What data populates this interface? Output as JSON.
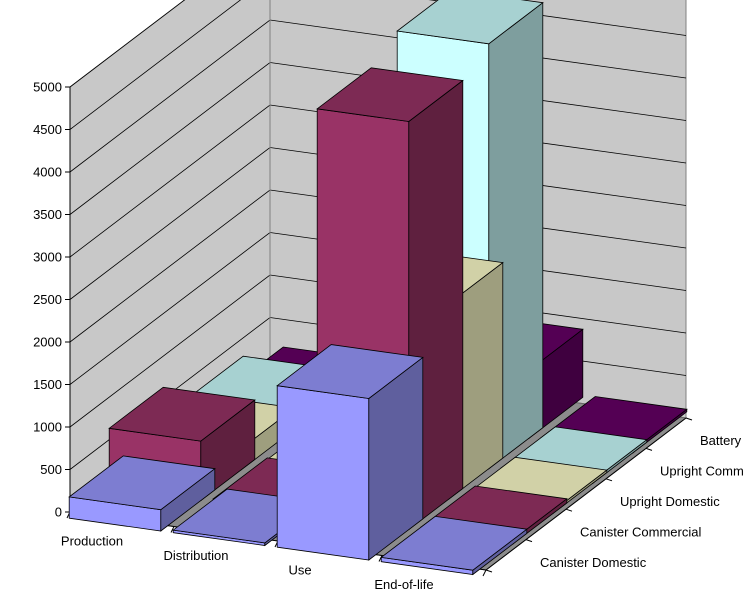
{
  "chart_data": {
    "type": "bar",
    "subtype": "3d-column",
    "title": "",
    "xlabel": "",
    "ylabel": "",
    "ylim": [
      0,
      5000
    ],
    "yticks": [
      "0",
      "500",
      "1000",
      "1500",
      "2000",
      "2500",
      "3000",
      "3500",
      "4000",
      "4500",
      "5000"
    ],
    "grid": true,
    "categories": [
      "Production",
      "Distribution",
      "Use",
      "End-of-life"
    ],
    "series": [
      {
        "name": "Canister Domestic",
        "color": "#9999FF",
        "values": [
          250,
          30,
          1900,
          50
        ]
      },
      {
        "name": "Canister Commercial",
        "color": "#993366",
        "values": [
          700,
          40,
          4800,
          50
        ]
      },
      {
        "name": "Upright Domestic",
        "color": "#FFFFCC",
        "values": [
          250,
          20,
          2300,
          30
        ]
      },
      {
        "name": "Upright Commercial",
        "color": "#CCFFFF",
        "values": [
          350,
          10,
          5000,
          30
        ]
      },
      {
        "name": "Battery Cordless",
        "color": "#660066",
        "values": [
          100,
          0,
          800,
          30
        ]
      }
    ]
  }
}
